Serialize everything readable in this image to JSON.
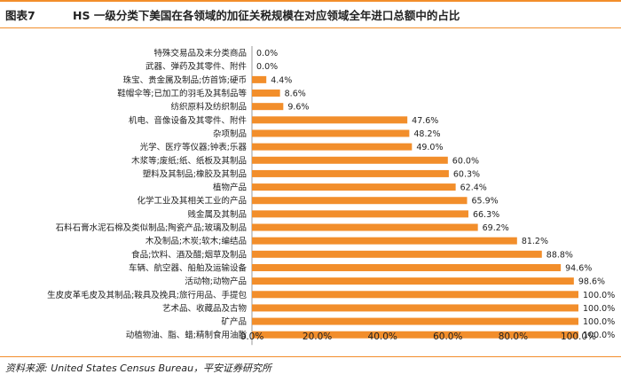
{
  "figure": {
    "label": "图表7",
    "title": "HS 一级分类下美国在各领域的加征关税规模在对应领域全年进口总额中的占比"
  },
  "source": "资料来源: United States Census Bureau，平安证券研究所",
  "colors": {
    "bar": "#f28e2b",
    "accent_line": "#f28e2b",
    "text": "#222222"
  },
  "chart_data": {
    "type": "bar",
    "orientation": "horizontal",
    "title": "HS 一级分类下美国在各领域的加征关税规模在对应领域全年进口总额中的占比",
    "xlabel": "",
    "ylabel": "",
    "xlim": [
      0,
      100
    ],
    "ticks": [
      "0.0%",
      "20.0%",
      "40.0%",
      "60.0%",
      "80.0%",
      "100.0%"
    ],
    "grid": false,
    "categories": [
      "特殊交易品及未分类商品",
      "武器、弹药及其零件、附件",
      "珠宝、贵金属及制品;仿首饰;硬币",
      "鞋帽伞等;已加工的羽毛及其制品等",
      "纺织原料及纺织制品",
      "机电、音像设备及其零件、附件",
      "杂项制品",
      "光学、医疗等仪器;钟表;乐器",
      "木浆等;废纸;纸、纸板及其制品",
      "塑料及其制品;橡胶及其制品",
      "植物产品",
      "化学工业及其相关工业的产品",
      "贱金属及其制品",
      "石料石膏水泥石棉及类似制品;陶瓷产品;玻璃及制品",
      "木及制品;木炭;软木;编结品",
      "食品;饮料、酒及醋;烟草及制品",
      "车辆、航空器、船舶及运输设备",
      "活动物;动物产品",
      "生皮皮革毛皮及其制品;鞍具及挽具;旅行用品、手提包",
      "艺术品、收藏品及古物",
      "矿产品",
      "动植物油、脂、蜡;精制食用油脂"
    ],
    "values": [
      0.0,
      0.0,
      4.4,
      8.6,
      9.6,
      47.6,
      48.2,
      49.0,
      60.0,
      60.3,
      62.4,
      65.9,
      66.3,
      69.2,
      81.2,
      88.8,
      94.6,
      98.6,
      100.0,
      100.0,
      100.0,
      100.0
    ],
    "value_labels": [
      "0.0%",
      "0.0%",
      "4.4%",
      "8.6%",
      "9.6%",
      "47.6%",
      "48.2%",
      "49.0%",
      "60.0%",
      "60.3%",
      "62.4%",
      "65.9%",
      "66.3%",
      "69.2%",
      "81.2%",
      "88.8%",
      "94.6%",
      "98.6%",
      "100.0%",
      "100.0%",
      "100.0%",
      "100.0%"
    ]
  }
}
